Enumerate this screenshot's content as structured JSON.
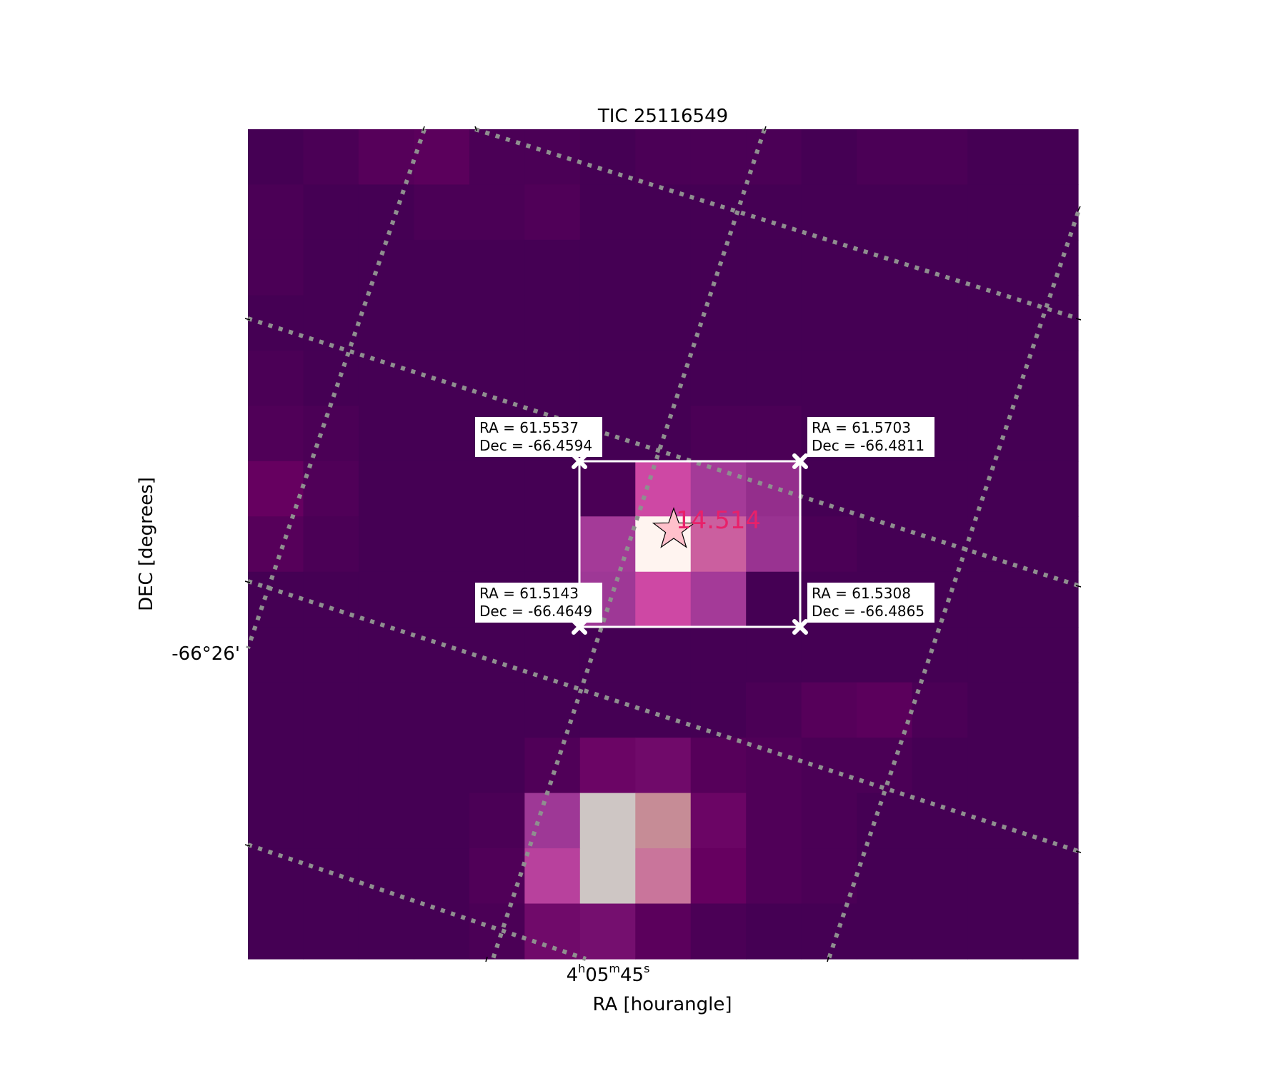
{
  "chart_data": {
    "type": "heatmap",
    "title": "TIC 25116549",
    "xlabel": "RA [hourangle]",
    "ylabel": "DEC [degrees]",
    "x_tick_labels": [
      {
        "h": "4",
        "m": "05",
        "s": "45"
      }
    ],
    "y_tick_labels": [
      "-66°26'"
    ],
    "colormap": "RdPu_r-like (dark purple → pink → white)",
    "grid": "dotted gray WCS grid",
    "pixel_values_relative": [
      [
        0.02,
        0.03,
        0.05,
        0.06,
        0.03,
        0.03,
        0.02,
        0.03,
        0.03,
        0.03,
        0.02,
        0.03,
        0.03,
        0.02,
        0.02
      ],
      [
        0.03,
        0.02,
        0.02,
        0.03,
        0.03,
        0.04,
        0.02,
        0.02,
        0.02,
        0.02,
        0.02,
        0.02,
        0.02,
        0.02,
        0.02
      ],
      [
        0.03,
        0.02,
        0.02,
        0.02,
        0.02,
        0.02,
        0.02,
        0.02,
        0.02,
        0.02,
        0.02,
        0.02,
        0.02,
        0.02,
        0.02
      ],
      [
        0.02,
        0.02,
        0.02,
        0.02,
        0.02,
        0.02,
        0.02,
        0.02,
        0.02,
        0.02,
        0.02,
        0.02,
        0.02,
        0.02,
        0.02
      ],
      [
        0.03,
        0.02,
        0.02,
        0.02,
        0.02,
        0.02,
        0.02,
        0.02,
        0.02,
        0.02,
        0.02,
        0.02,
        0.02,
        0.02,
        0.02
      ],
      [
        0.04,
        0.03,
        0.02,
        0.02,
        0.02,
        0.02,
        0.02,
        0.02,
        0.03,
        0.03,
        0.02,
        0.02,
        0.02,
        0.02,
        0.02
      ],
      [
        0.08,
        0.04,
        0.02,
        0.02,
        0.02,
        0.02,
        0.03,
        0.45,
        0.32,
        0.26,
        0.02,
        0.02,
        0.02,
        0.02,
        0.02
      ],
      [
        0.05,
        0.03,
        0.02,
        0.02,
        0.02,
        0.02,
        0.32,
        1.0,
        0.5,
        0.28,
        0.03,
        0.02,
        0.02,
        0.02,
        0.02
      ],
      [
        0.02,
        0.02,
        0.02,
        0.02,
        0.02,
        0.02,
        0.3,
        0.45,
        0.32,
        0.02,
        0.02,
        0.02,
        0.02,
        0.02,
        0.02
      ],
      [
        0.02,
        0.02,
        0.02,
        0.02,
        0.02,
        0.02,
        0.02,
        0.02,
        0.02,
        0.02,
        0.02,
        0.02,
        0.02,
        0.02,
        0.02
      ],
      [
        0.02,
        0.02,
        0.02,
        0.02,
        0.02,
        0.02,
        0.02,
        0.02,
        0.02,
        0.03,
        0.05,
        0.06,
        0.03,
        0.02,
        0.02
      ],
      [
        0.02,
        0.02,
        0.02,
        0.02,
        0.02,
        0.04,
        0.1,
        0.12,
        0.05,
        0.04,
        0.03,
        0.03,
        0.02,
        0.02,
        0.02
      ],
      [
        0.02,
        0.02,
        0.02,
        0.02,
        0.03,
        0.3,
        0.85,
        0.6,
        0.1,
        0.04,
        0.03,
        0.02,
        0.02,
        0.02,
        0.02
      ],
      [
        0.02,
        0.02,
        0.02,
        0.02,
        0.04,
        0.38,
        0.85,
        0.55,
        0.08,
        0.04,
        0.03,
        0.02,
        0.02,
        0.02,
        0.02
      ],
      [
        0.02,
        0.02,
        0.02,
        0.02,
        0.03,
        0.12,
        0.14,
        0.06,
        0.03,
        0.02,
        0.02,
        0.02,
        0.02,
        0.02,
        0.02
      ]
    ],
    "aperture": {
      "corner_labels": [
        {
          "ra": "RA = 61.5537",
          "dec": "Dec = -66.4594"
        },
        {
          "ra": "RA = 61.5703",
          "dec": "Dec = -66.4811"
        },
        {
          "ra": "RA = 61.5143",
          "dec": "Dec = -66.4649"
        },
        {
          "ra": "RA = 61.5308",
          "dec": "Dec = -66.4865"
        }
      ]
    },
    "target": {
      "magnitude_label": "14.514",
      "marker": "star-icon",
      "marker_color": "#ffc0cb",
      "label_color": "#e8216a"
    }
  }
}
